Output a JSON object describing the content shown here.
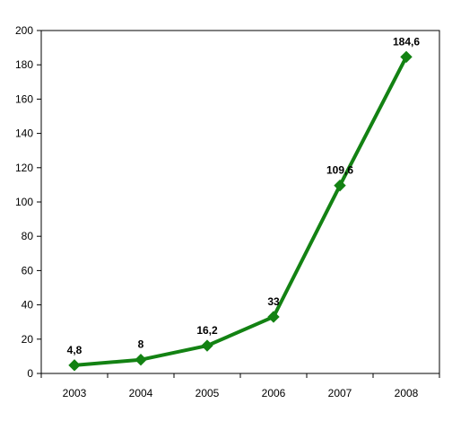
{
  "chart_data": {
    "type": "line",
    "title": "",
    "xlabel": "",
    "ylabel": "",
    "categories": [
      "2003",
      "2004",
      "2005",
      "2006",
      "2007",
      "2008"
    ],
    "series": [
      {
        "values": [
          4.8,
          8,
          16.2,
          33,
          109.6,
          184.6
        ],
        "color": "#138213",
        "marker": "diamond",
        "data_labels": [
          "4,8",
          "8",
          "16,2",
          "33",
          "109,6",
          "184,6"
        ]
      }
    ],
    "ylim": [
      0,
      200
    ],
    "yticks": [
      0,
      20,
      40,
      60,
      80,
      100,
      120,
      140,
      160,
      180,
      200
    ],
    "ytick_labels": [
      "0",
      "20",
      "40",
      "60",
      "80",
      "100",
      "120",
      "140",
      "160",
      "180",
      "200"
    ],
    "grid": false,
    "legend": "none"
  }
}
